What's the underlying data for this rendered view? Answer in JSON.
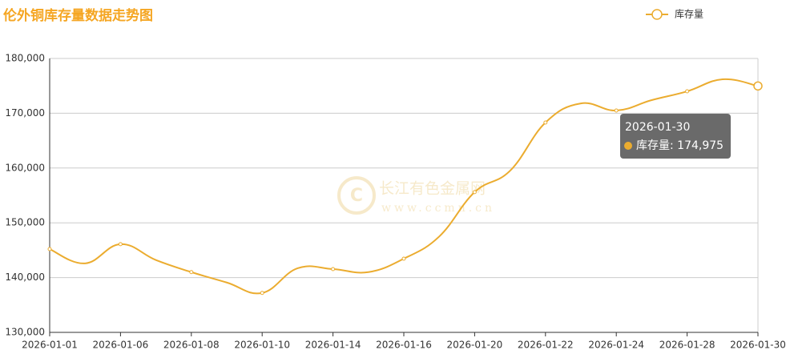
{
  "chart_data": {
    "type": "line",
    "title": "伦外铜库存量数据走势图",
    "categories": [
      "2026-01-01",
      null,
      "2026-01-06",
      null,
      "2026-01-08",
      null,
      "2026-01-10",
      null,
      "2026-01-14",
      null,
      "2026-01-16",
      null,
      "2026-01-20",
      null,
      "2026-01-22",
      null,
      "2026-01-24",
      null,
      "2026-01-28",
      null,
      "2026-01-30"
    ],
    "series": [
      {
        "name": "库存量",
        "color": "#ebac2f",
        "values": [
          145200,
          142600,
          146100,
          143200,
          141000,
          139100,
          137200,
          141700,
          141550,
          141000,
          143450,
          147500,
          155600,
          159500,
          168300,
          171800,
          170500,
          172400,
          174000,
          176200,
          174975
        ]
      }
    ],
    "ylim": [
      130000,
      180000
    ],
    "yticks": [
      {
        "value": 130000,
        "label": "130,000"
      },
      {
        "value": 140000,
        "label": "140,000"
      },
      {
        "value": 150000,
        "label": "150,000"
      },
      {
        "value": 160000,
        "label": "160,000"
      },
      {
        "value": 170000,
        "label": "170,000"
      },
      {
        "value": 180000,
        "label": "180,000"
      }
    ],
    "grid": true,
    "legend": "top-right",
    "tooltip": {
      "label": "库存量: 174,975"
    },
    "watermark": {
      "name": "长江有色金属网",
      "url": "www.ccmn.cn"
    }
  }
}
